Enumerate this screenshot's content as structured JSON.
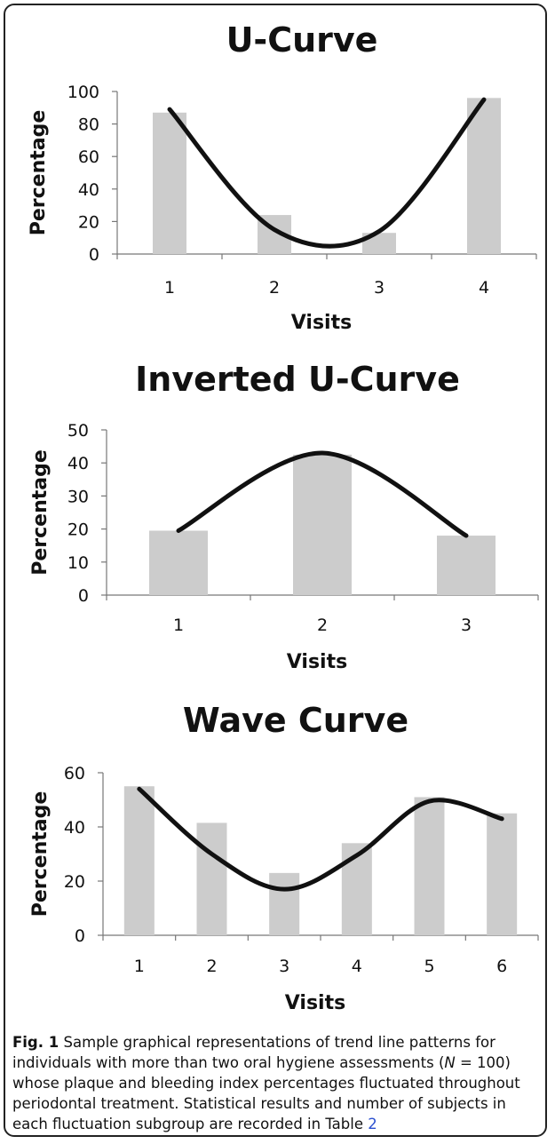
{
  "chart_data": [
    {
      "type": "bar",
      "title": "U-Curve",
      "xlabel": "Visits",
      "ylabel": "Percentage",
      "categories": [
        "1",
        "2",
        "3",
        "4"
      ],
      "values": [
        87,
        24,
        13,
        96
      ],
      "ylim": [
        0,
        100
      ],
      "yticks": [
        0,
        20,
        40,
        60,
        80,
        100
      ],
      "trendline": [
        89,
        15,
        14,
        95
      ],
      "bar_color": "#cccccc",
      "line_color": "#111111",
      "grid": false,
      "legend": "none"
    },
    {
      "type": "bar",
      "title": "Inverted U-Curve",
      "xlabel": "Visits",
      "ylabel": "Percentage",
      "categories": [
        "1",
        "2",
        "3"
      ],
      "values": [
        19.5,
        42.5,
        18
      ],
      "ylim": [
        0,
        50
      ],
      "yticks": [
        0,
        10,
        20,
        30,
        40,
        50
      ],
      "trendline": [
        19.5,
        43,
        18
      ],
      "bar_color": "#cccccc",
      "line_color": "#111111",
      "grid": false,
      "legend": "none"
    },
    {
      "type": "bar",
      "title": "Wave Curve",
      "xlabel": "Visits",
      "ylabel": "Percentage",
      "categories": [
        "1",
        "2",
        "3",
        "4",
        "5",
        "6"
      ],
      "values": [
        55,
        41.5,
        23,
        34,
        51,
        45
      ],
      "ylim": [
        0,
        60
      ],
      "yticks": [
        0,
        20,
        40,
        60
      ],
      "trendline": [
        54,
        30,
        17,
        29.5,
        49.5,
        43
      ],
      "bar_color": "#cccccc",
      "line_color": "#111111",
      "grid": false,
      "legend": "none"
    }
  ],
  "caption": {
    "label": "Fig. 1",
    "text_before_n": " Sample graphical representations of trend line patterns for individuals with more than two oral hygiene assessments (",
    "n_symbol": "N",
    "text_after_n": " = 100) whose plaque and bleeding index percentages fluctuated throughout periodontal treatment. Statistical results and number of subjects in each fluctuation subgroup are recorded in Table ",
    "table_ref": "2"
  }
}
